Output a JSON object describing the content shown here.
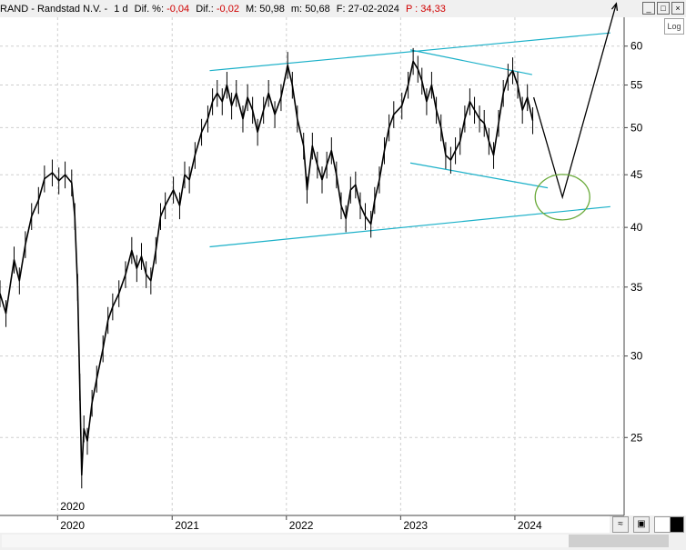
{
  "info": {
    "ticker": "RAND - Randstad N.V. -",
    "interval": "1 d",
    "dif_pct_label": "Dif. %:",
    "dif_pct_value": "-0,04",
    "dif_label": "Dif.:",
    "dif_value": "-0,02",
    "max_label": "M:",
    "max_value": "50,98",
    "min_label": "m:",
    "min_value": "50,68",
    "date_label": "F:",
    "date_value": "27-02-2024",
    "p_label": "P :",
    "p_value": "34,33"
  },
  "controls": {
    "log_label": "Log",
    "minimize_icon": "minimize-icon",
    "maximize_icon": "maximize-icon",
    "close_icon": "close-icon"
  },
  "chart_data": {
    "type": "line",
    "title": "RAND - Randstad N.V.",
    "y_scale": "log",
    "y_ticks": [
      25,
      30,
      35,
      40,
      45,
      50,
      55,
      60
    ],
    "x_ticks": [
      "2020",
      "2021",
      "2022",
      "2023",
      "2024"
    ],
    "x_marker_label": "2020",
    "xlim": [
      "2019-07-01",
      "2024-12-15"
    ],
    "ylim": [
      21,
      64
    ],
    "grid": true,
    "colors": {
      "price": "#000000",
      "trendline": "#1ab0c8",
      "circle": "#6aaa3a",
      "projection": "#000000"
    },
    "series": [
      {
        "values": [
          [
            "2019-07-01",
            34.5
          ],
          [
            "2019-07-20",
            33.0
          ],
          [
            "2019-08-15",
            37.2
          ],
          [
            "2019-09-01",
            35.5
          ],
          [
            "2019-09-20",
            38.5
          ],
          [
            "2019-10-10",
            41.0
          ],
          [
            "2019-11-01",
            42.5
          ],
          [
            "2019-11-20",
            44.6
          ],
          [
            "2019-12-15",
            45.2
          ],
          [
            "2020-01-05",
            44.4
          ],
          [
            "2020-01-25",
            45.0
          ],
          [
            "2020-02-15",
            44.2
          ],
          [
            "2020-02-25",
            41.0
          ],
          [
            "2020-03-05",
            35.0
          ],
          [
            "2020-03-12",
            28.0
          ],
          [
            "2020-03-18",
            23.0
          ],
          [
            "2020-03-25",
            25.5
          ],
          [
            "2020-04-05",
            24.8
          ],
          [
            "2020-04-20",
            27.0
          ],
          [
            "2020-05-05",
            28.5
          ],
          [
            "2020-05-25",
            30.5
          ],
          [
            "2020-06-10",
            32.5
          ],
          [
            "2020-06-25",
            33.5
          ],
          [
            "2020-07-15",
            34.5
          ],
          [
            "2020-08-05",
            36.0
          ],
          [
            "2020-08-25",
            38.0
          ],
          [
            "2020-09-10",
            36.5
          ],
          [
            "2020-09-25",
            37.5
          ],
          [
            "2020-10-10",
            36.0
          ],
          [
            "2020-10-25",
            35.5
          ],
          [
            "2020-11-10",
            38.0
          ],
          [
            "2020-11-25",
            41.0
          ],
          [
            "2020-12-10",
            42.0
          ],
          [
            "2021-01-05",
            43.5
          ],
          [
            "2021-01-25",
            42.0
          ],
          [
            "2021-02-10",
            45.0
          ],
          [
            "2021-02-25",
            44.5
          ],
          [
            "2021-03-15",
            47.0
          ],
          [
            "2021-04-05",
            49.5
          ],
          [
            "2021-04-25",
            51.0
          ],
          [
            "2021-05-10",
            53.0
          ],
          [
            "2021-05-25",
            54.0
          ],
          [
            "2021-06-10",
            53.0
          ],
          [
            "2021-06-25",
            55.0
          ],
          [
            "2021-07-10",
            52.5
          ],
          [
            "2021-07-25",
            54.0
          ],
          [
            "2021-08-15",
            51.0
          ],
          [
            "2021-08-30",
            53.5
          ],
          [
            "2021-09-15",
            52.0
          ],
          [
            "2021-10-01",
            49.5
          ],
          [
            "2021-10-20",
            52.0
          ],
          [
            "2021-11-05",
            54.0
          ],
          [
            "2021-11-25",
            51.5
          ],
          [
            "2021-12-15",
            53.5
          ],
          [
            "2022-01-05",
            57.5
          ],
          [
            "2022-01-20",
            55.0
          ],
          [
            "2022-02-05",
            51.0
          ],
          [
            "2022-02-25",
            48.0
          ],
          [
            "2022-03-08",
            43.5
          ],
          [
            "2022-03-25",
            48.0
          ],
          [
            "2022-04-10",
            46.0
          ],
          [
            "2022-04-25",
            44.5
          ],
          [
            "2022-05-10",
            46.0
          ],
          [
            "2022-05-25",
            47.5
          ],
          [
            "2022-06-10",
            45.0
          ],
          [
            "2022-06-25",
            42.0
          ],
          [
            "2022-07-10",
            40.8
          ],
          [
            "2022-07-25",
            43.5
          ],
          [
            "2022-08-10",
            44.0
          ],
          [
            "2022-08-25",
            42.0
          ],
          [
            "2022-09-10",
            41.0
          ],
          [
            "2022-09-28",
            40.3
          ],
          [
            "2022-10-10",
            42.5
          ],
          [
            "2022-10-25",
            44.5
          ],
          [
            "2022-11-10",
            47.5
          ],
          [
            "2022-11-25",
            50.0
          ],
          [
            "2022-12-10",
            51.5
          ],
          [
            "2023-01-05",
            52.5
          ],
          [
            "2023-01-25",
            55.0
          ],
          [
            "2023-02-10",
            58.0
          ],
          [
            "2023-02-25",
            57.0
          ],
          [
            "2023-03-10",
            55.5
          ],
          [
            "2023-03-25",
            53.0
          ],
          [
            "2023-04-10",
            55.0
          ],
          [
            "2023-04-25",
            52.0
          ],
          [
            "2023-05-10",
            50.0
          ],
          [
            "2023-05-25",
            47.0
          ],
          [
            "2023-06-10",
            46.5
          ],
          [
            "2023-06-25",
            47.5
          ],
          [
            "2023-07-10",
            48.5
          ],
          [
            "2023-07-25",
            51.0
          ],
          [
            "2023-08-10",
            53.0
          ],
          [
            "2023-08-25",
            52.0
          ],
          [
            "2023-09-10",
            51.0
          ],
          [
            "2023-09-25",
            50.5
          ],
          [
            "2023-10-10",
            48.5
          ],
          [
            "2023-10-25",
            47.0
          ],
          [
            "2023-11-10",
            50.5
          ],
          [
            "2023-11-25",
            54.0
          ],
          [
            "2023-12-10",
            56.0
          ],
          [
            "2023-12-25",
            56.8
          ],
          [
            "2024-01-10",
            55.0
          ],
          [
            "2024-01-25",
            52.0
          ],
          [
            "2024-02-10",
            53.5
          ],
          [
            "2024-02-27",
            50.8
          ]
        ]
      }
    ],
    "trendlines": [
      {
        "points": [
          [
            "2021-05-01",
            56.8
          ],
          [
            "2024-11-01",
            61.8
          ]
        ]
      },
      {
        "points": [
          [
            "2021-05-01",
            38.3
          ],
          [
            "2024-11-01",
            41.9
          ]
        ]
      },
      {
        "points": [
          [
            "2023-02-01",
            59.5
          ],
          [
            "2024-02-25",
            56.3
          ]
        ]
      },
      {
        "points": [
          [
            "2023-02-01",
            46.2
          ],
          [
            "2024-04-15",
            43.7
          ]
        ]
      }
    ],
    "projection": {
      "points": [
        [
          "2024-03-01",
          53.5
        ],
        [
          "2024-06-01",
          42.8
        ],
        [
          "2024-11-20",
          66.0
        ]
      ]
    },
    "target_zone": {
      "center": [
        "2024-06-01",
        42.8
      ]
    }
  }
}
